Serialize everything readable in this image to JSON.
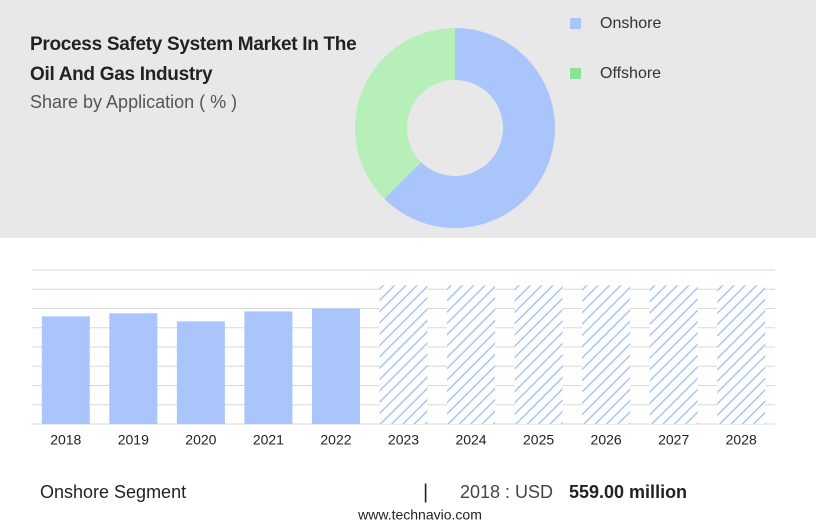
{
  "chart_data": [
    {
      "type": "pie",
      "title": "Process Safety System Market In The Oil And Gas Industry",
      "subtitle": "Share by Application ( % )",
      "categories": [
        "Onshore",
        "Offshore"
      ],
      "values": [
        62.5,
        37.5
      ],
      "colors": [
        "#a9c5fb",
        "#b6f0b8"
      ],
      "legend_colors": [
        "#a9c5fb",
        "#86e49a"
      ],
      "donut": true
    },
    {
      "type": "bar",
      "categories": [
        "2018",
        "2019",
        "2020",
        "2021",
        "2022",
        "2023",
        "2024",
        "2025",
        "2026",
        "2027",
        "2028"
      ],
      "values": [
        559,
        575,
        533,
        585,
        600,
        720,
        720,
        720,
        720,
        720,
        720
      ],
      "pattern": [
        "solid",
        "solid",
        "solid",
        "solid",
        "solid",
        "hatched",
        "hatched",
        "hatched",
        "hatched",
        "hatched",
        "hatched"
      ],
      "color": "#a9c5fb",
      "ylim": [
        0,
        800
      ],
      "grid": true
    }
  ],
  "footer": {
    "segment": "Onshore Segment",
    "year_label": "2018 : USD",
    "value": "559.00 million",
    "source": "www.technavio.com"
  }
}
